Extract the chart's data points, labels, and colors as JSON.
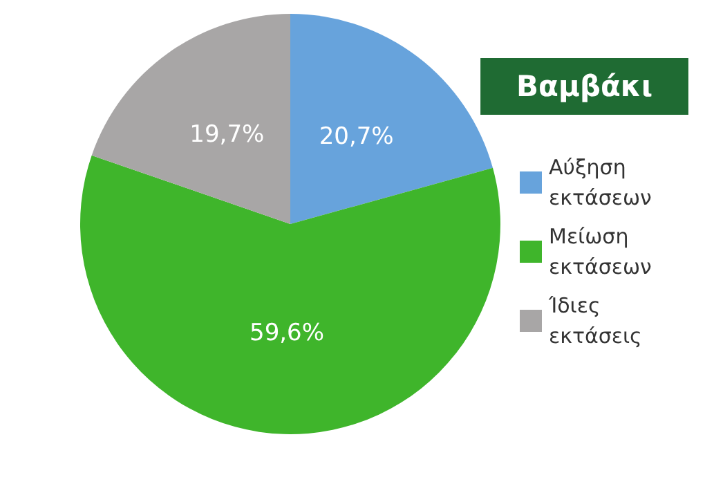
{
  "chart_data": {
    "type": "pie",
    "title": "Βαμβάκι",
    "categories": [
      "Αύξηση εκτάσεων",
      "Μείωση εκτάσεων",
      "Ίδιες εκτάσεις"
    ],
    "values": [
      20.7,
      59.6,
      19.7
    ],
    "colors": [
      "#67a3dc",
      "#3fb52b",
      "#a8a6a6"
    ],
    "value_labels": [
      "20,7%",
      "59,6%",
      "19,7%"
    ],
    "legend": "right"
  }
}
